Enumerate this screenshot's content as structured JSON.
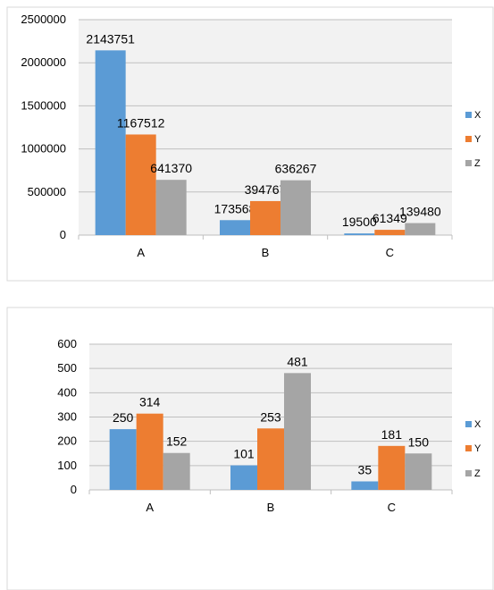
{
  "chart_data": [
    {
      "type": "bar",
      "title": "",
      "xlabel": "",
      "ylabel": "",
      "categories": [
        "A",
        "B",
        "C"
      ],
      "ylim": [
        0,
        2500000
      ],
      "y_ticks": [
        "0",
        "500000",
        "1000000",
        "1500000",
        "2000000",
        "2500000"
      ],
      "grid": true,
      "legend": "right",
      "series": [
        {
          "name": "X",
          "color": "#5B9BD5",
          "values": [
            2143751,
            173568,
            19500
          ]
        },
        {
          "name": "Y",
          "color": "#ED7D31",
          "values": [
            1167512,
            394767,
            61349
          ]
        },
        {
          "name": "Z",
          "color": "#A5A5A5",
          "values": [
            641370,
            636267,
            139480
          ]
        }
      ]
    },
    {
      "type": "bar",
      "title": "",
      "xlabel": "",
      "ylabel": "",
      "categories": [
        "A",
        "B",
        "C"
      ],
      "ylim": [
        0,
        600
      ],
      "y_ticks": [
        "0",
        "100",
        "200",
        "300",
        "400",
        "500",
        "600"
      ],
      "grid": true,
      "legend": "right",
      "series": [
        {
          "name": "X",
          "color": "#5B9BD5",
          "values": [
            250,
            101,
            35
          ]
        },
        {
          "name": "Y",
          "color": "#ED7D31",
          "values": [
            314,
            253,
            181
          ]
        },
        {
          "name": "Z",
          "color": "#A5A5A5",
          "values": [
            152,
            481,
            150
          ]
        }
      ]
    }
  ]
}
